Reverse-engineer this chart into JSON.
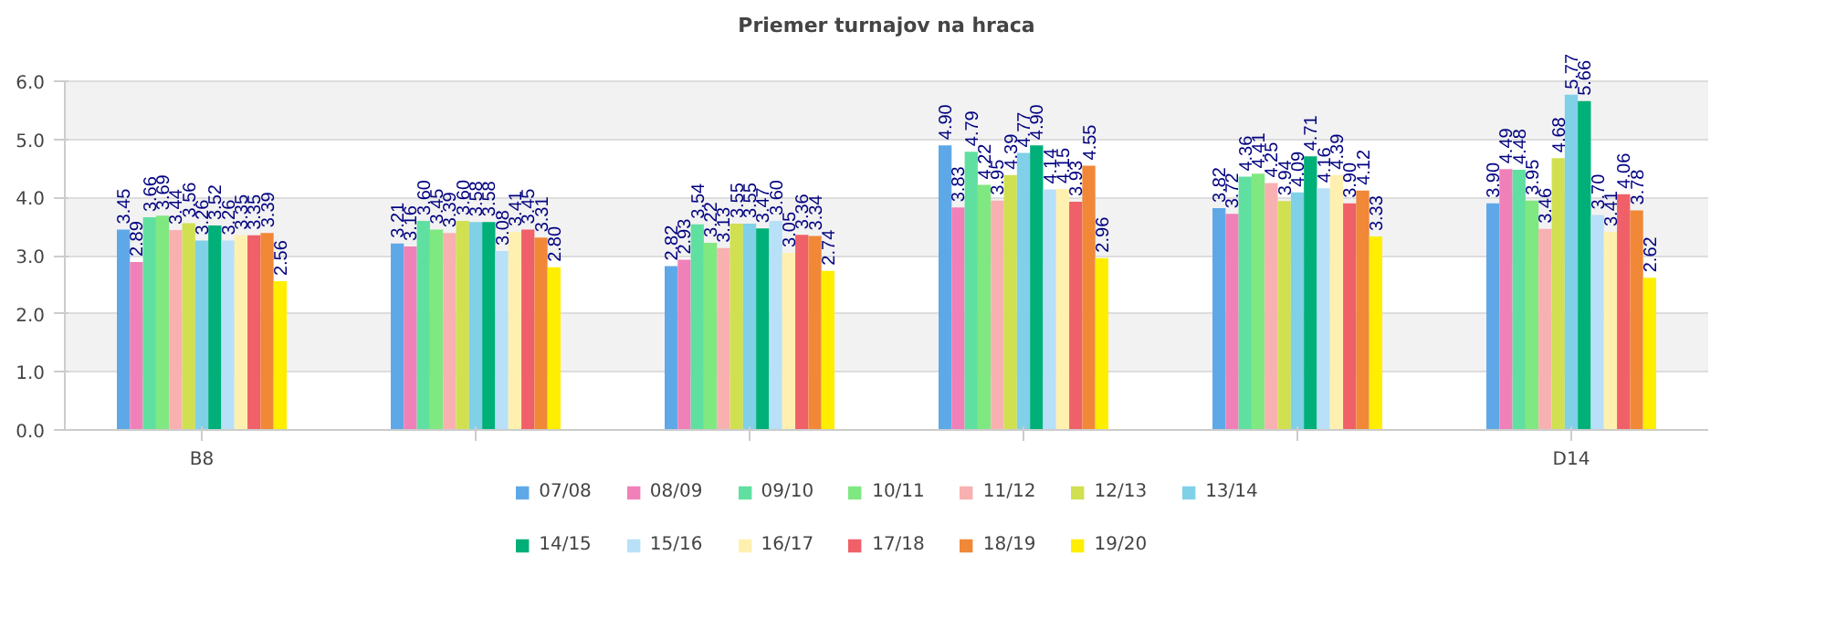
{
  "chart_data": {
    "type": "bar",
    "title": "Priemer turnajov na hraca",
    "categories": [
      "B8",
      null,
      null,
      null,
      null,
      "D14"
    ],
    "ylim": [
      0,
      6
    ],
    "yticks": [
      {
        "value": 0,
        "label": "0.0"
      },
      {
        "value": 1,
        "label": "1.0"
      },
      {
        "value": 2,
        "label": "2.0"
      },
      {
        "value": 3,
        "label": "3.0"
      },
      {
        "value": 4,
        "label": "4.0"
      },
      {
        "value": 5,
        "label": "5.0"
      },
      {
        "value": 6,
        "label": "6.0"
      }
    ],
    "grid": "y",
    "legend": "bottom",
    "series": [
      {
        "name": "07/08",
        "color": "#5fa8e8",
        "values": [
          3.45,
          3.21,
          2.82,
          4.9,
          3.82,
          3.9
        ],
        "value_labels": [
          "3.45",
          "3.21",
          "2.82",
          "4.90",
          "3.82",
          "3.90"
        ]
      },
      {
        "name": "08/09",
        "color": "#f080b8",
        "values": [
          2.89,
          3.16,
          2.93,
          3.83,
          3.72,
          4.49
        ],
        "value_labels": [
          "2.89",
          "3.16",
          "2.93",
          "3.83",
          "3.72",
          "4.49"
        ]
      },
      {
        "name": "09/10",
        "color": "#60e0a0",
        "values": [
          3.66,
          3.6,
          3.54,
          4.79,
          4.36,
          4.48
        ],
        "value_labels": [
          "3.66",
          "3.60",
          "3.54",
          "4.79",
          "4.36",
          "4.48"
        ]
      },
      {
        "name": "10/11",
        "color": "#80e880",
        "values": [
          3.69,
          3.45,
          3.22,
          4.22,
          4.41,
          3.95
        ],
        "value_labels": [
          "3.69",
          "3.45",
          "3.22",
          "4.22",
          "4.41",
          "3.95"
        ]
      },
      {
        "name": "11/12",
        "color": "#f8b0b0",
        "values": [
          3.44,
          3.39,
          3.13,
          3.95,
          4.25,
          3.46
        ],
        "value_labels": [
          "3.44",
          "3.39",
          "3.13",
          "3.95",
          "4.25",
          "3.46"
        ]
      },
      {
        "name": "12/13",
        "color": "#d0e050",
        "values": [
          3.56,
          3.6,
          3.55,
          4.39,
          3.94,
          4.68
        ],
        "value_labels": [
          "3.56",
          "3.60",
          "3.55",
          "4.39",
          "3.94",
          "4.68"
        ]
      },
      {
        "name": "13/14",
        "color": "#80d0e8",
        "values": [
          3.26,
          3.58,
          3.55,
          4.77,
          4.09,
          5.77
        ],
        "value_labels": [
          "3.26",
          "3.58",
          "3.55",
          "4.77",
          "4.09",
          "5.77"
        ]
      },
      {
        "name": "14/15",
        "color": "#00b078",
        "values": [
          3.52,
          3.58,
          3.47,
          4.9,
          4.71,
          5.66
        ],
        "value_labels": [
          "3.52",
          "3.58",
          "3.47",
          "4.90",
          "4.71",
          "5.66"
        ]
      },
      {
        "name": "15/16",
        "color": "#b8e0f8",
        "values": [
          3.26,
          3.08,
          3.6,
          4.14,
          4.16,
          3.7
        ],
        "value_labels": [
          "3.26",
          "3.08",
          "3.60",
          "4.14",
          "4.16",
          "3.70"
        ]
      },
      {
        "name": "16/17",
        "color": "#fff0b0",
        "values": [
          3.35,
          3.41,
          3.05,
          4.15,
          4.39,
          3.41
        ],
        "value_labels": [
          "3.35",
          "3.41",
          "3.05",
          "4.15",
          "4.39",
          "3.41"
        ]
      },
      {
        "name": "17/18",
        "color": "#f06068",
        "values": [
          3.35,
          3.45,
          3.36,
          3.93,
          3.9,
          4.06
        ],
        "value_labels": [
          "3.35",
          "3.45",
          "3.36",
          "3.93",
          "3.90",
          "4.06"
        ]
      },
      {
        "name": "18/19",
        "color": "#f08838",
        "values": [
          3.39,
          3.31,
          3.34,
          4.55,
          4.12,
          3.78
        ],
        "value_labels": [
          "3.39",
          "3.31",
          "3.34",
          "4.55",
          "4.12",
          "3.78"
        ]
      },
      {
        "name": "19/20",
        "color": "#ffee00",
        "values": [
          2.56,
          2.8,
          2.74,
          2.96,
          3.33,
          2.62
        ],
        "value_labels": [
          "2.56",
          "2.80",
          "2.74",
          "2.96",
          "3.33",
          "2.62"
        ]
      }
    ]
  }
}
